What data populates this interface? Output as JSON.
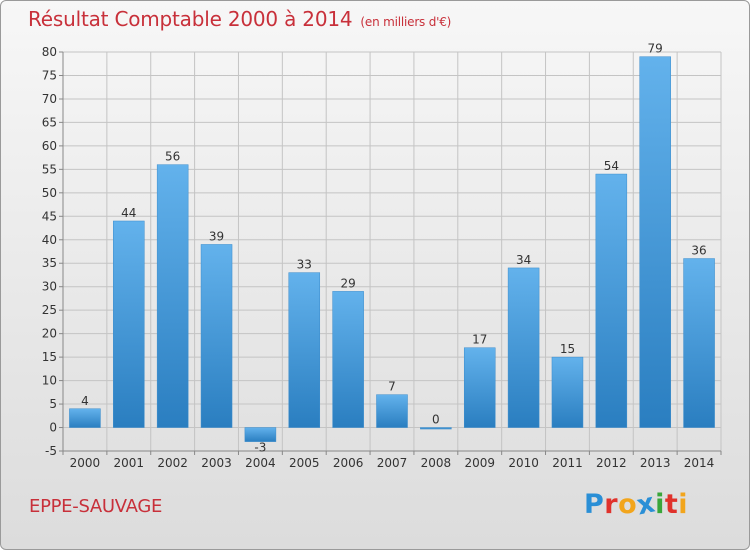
{
  "header": {
    "title": "Résultat Comptable 2000 à 2014",
    "unit": "(en milliers d'€)"
  },
  "footer": {
    "commune": "EPPE-SAUVAGE",
    "logo_letters": [
      "P",
      "r",
      "o",
      "x",
      "i",
      "t",
      "i"
    ],
    "logo_colors": [
      "#2a8fd6",
      "#e0322c",
      "#f2a51c",
      "#2a8fd6",
      "#3aa63a",
      "#e0322c",
      "#f2a51c"
    ]
  },
  "colors": {
    "title": "#c8303a",
    "bar_light": "#63b2ec",
    "bar_dark": "#2a7ec0",
    "grid": "#c4c4c4"
  },
  "chart_data": {
    "type": "bar",
    "categories": [
      "2000",
      "2001",
      "2002",
      "2003",
      "2004",
      "2005",
      "2006",
      "2007",
      "2008",
      "2009",
      "2010",
      "2011",
      "2012",
      "2013",
      "2014"
    ],
    "values": [
      4,
      44,
      56,
      39,
      -3,
      33,
      29,
      7,
      0,
      17,
      34,
      15,
      54,
      79,
      36
    ],
    "data_labels": [
      "4",
      "44",
      "56",
      "39",
      "-3",
      "33",
      "29",
      "7",
      "0",
      "17",
      "34",
      "15",
      "54",
      "79",
      "36"
    ],
    "ylim": [
      -5,
      80
    ],
    "yticks": [
      -5,
      0,
      5,
      10,
      15,
      20,
      25,
      30,
      35,
      40,
      45,
      50,
      55,
      60,
      65,
      70,
      75,
      80
    ],
    "grid": true,
    "legend": "none"
  }
}
